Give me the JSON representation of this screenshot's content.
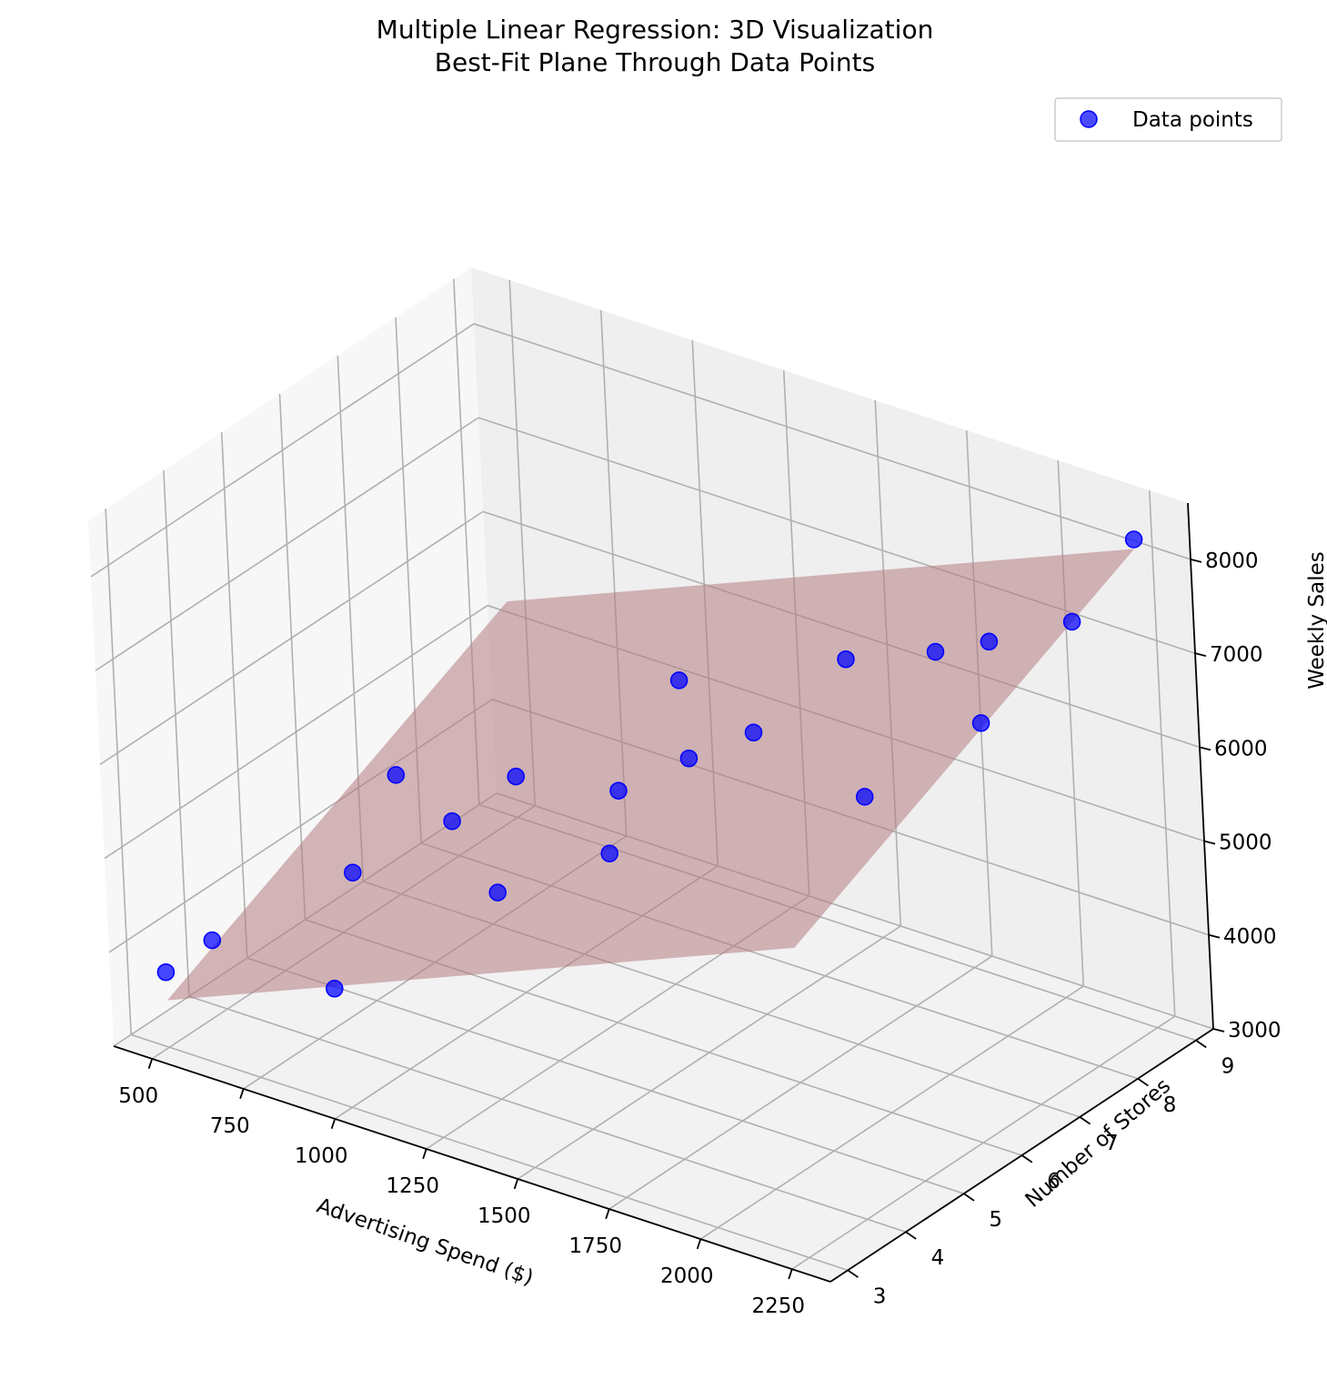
{
  "chart_data": {
    "type": "scatter",
    "title": "Multiple Linear Regression: 3D Visualization",
    "subtitle": "Best-Fit Plane Through Data Points",
    "xlabel": "Advertising Spend ($)",
    "ylabel": "Number of Stores",
    "zlabel": "Weekly Sales",
    "x_ticks": [
      "500",
      "750",
      "1000",
      "1250",
      "1500",
      "1750",
      "2000",
      "2250"
    ],
    "y_ticks": [
      "3",
      "4",
      "5",
      "6",
      "7",
      "8",
      "9"
    ],
    "z_ticks": [
      "3000",
      "4000",
      "5000",
      "6000",
      "7000",
      "8000"
    ],
    "xlim": [
      395,
      2355
    ],
    "ylim": [
      2.7,
      9.3
    ],
    "zlim": [
      3000,
      8600
    ],
    "grid": true,
    "legend": {
      "placement": "top-right",
      "entries": [
        "Data points"
      ]
    },
    "series": [
      {
        "name": "Data points",
        "color": "#0000ff",
        "points": [
          {
            "x": 500,
            "y": 3,
            "z": 3800
          },
          {
            "x": 550,
            "y": 3.5,
            "z": 4000
          },
          {
            "x": 700,
            "y": 5,
            "z": 4300
          },
          {
            "x": 750,
            "y": 5.5,
            "z": 5200
          },
          {
            "x": 800,
            "y": 4,
            "z": 3600
          },
          {
            "x": 900,
            "y": 5.5,
            "z": 4900
          },
          {
            "x": 1000,
            "y": 6,
            "z": 5300
          },
          {
            "x": 1100,
            "y": 5,
            "z": 4600
          },
          {
            "x": 1200,
            "y": 6.5,
            "z": 5200
          },
          {
            "x": 1250,
            "y": 6,
            "z": 4800
          },
          {
            "x": 1300,
            "y": 7,
            "z": 6300
          },
          {
            "x": 1400,
            "y": 6.5,
            "z": 5800
          },
          {
            "x": 1500,
            "y": 7,
            "z": 6000
          },
          {
            "x": 1600,
            "y": 8,
            "z": 6500
          },
          {
            "x": 1800,
            "y": 7,
            "z": 5700
          },
          {
            "x": 1850,
            "y": 8,
            "z": 6900
          },
          {
            "x": 2000,
            "y": 8,
            "z": 7200
          },
          {
            "x": 2050,
            "y": 7.5,
            "z": 6600
          },
          {
            "x": 2150,
            "y": 8.5,
            "z": 7400
          },
          {
            "x": 2250,
            "y": 9,
            "z": 8200
          }
        ]
      }
    ],
    "fit_plane": {
      "color": "#b47c82",
      "intercept": 1800,
      "coef_x": 1.6,
      "coef_y": 300
    }
  }
}
